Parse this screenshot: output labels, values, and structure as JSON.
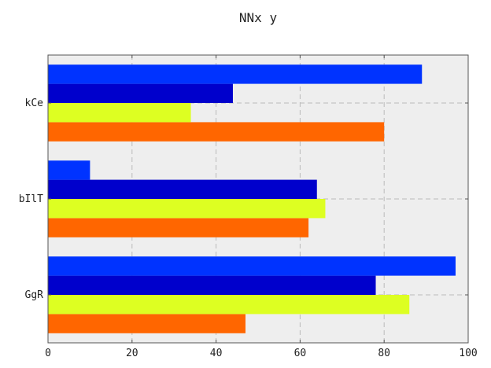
{
  "chart_data": {
    "type": "bar",
    "orientation": "horizontal",
    "title": "NNx y",
    "xlabel": "",
    "ylabel": "",
    "categories": [
      "GgR",
      "bIlT",
      "kCe"
    ],
    "xlim": [
      0,
      100
    ],
    "xticks": [
      0,
      20,
      40,
      60,
      80,
      100
    ],
    "grid": true,
    "background": "#eeeeee",
    "series": [
      {
        "color": "#ff6600",
        "values": [
          47,
          62,
          80
        ]
      },
      {
        "color": "#ddff22",
        "values": [
          86,
          66,
          34
        ]
      },
      {
        "color": "#0000cc",
        "values": [
          78,
          64,
          44
        ]
      },
      {
        "color": "#0033ff",
        "values": [
          97,
          10,
          89
        ]
      }
    ]
  }
}
